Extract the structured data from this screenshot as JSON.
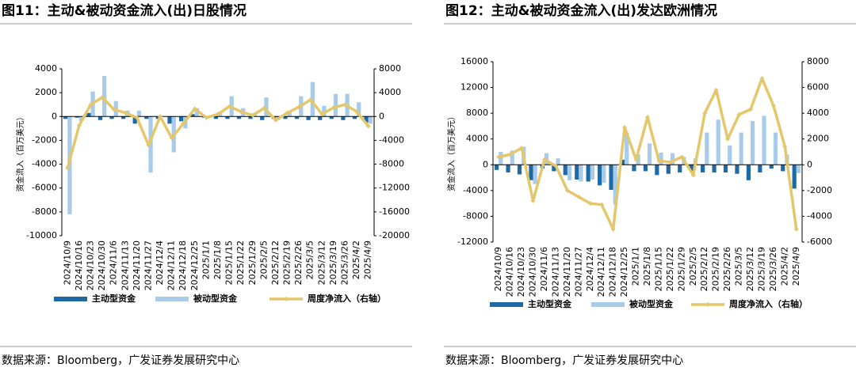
{
  "chart_data": [
    {
      "type": "bar",
      "title": "图11：主动&被动资金流入(出)日股情况",
      "ylabel": "资金流入（百万美元）",
      "source": "数据来源：Bloomberg，广发证券发展研究中心",
      "categories": [
        "2024/10/9",
        "2024/10/16",
        "2024/10/23",
        "2024/10/30",
        "2024/11/6",
        "2024/11/13",
        "2024/11/20",
        "2024/11/27",
        "2024/12/4",
        "2024/12/11",
        "2024/12/18",
        "2024/12/25",
        "2025/1/1",
        "2025/1/8",
        "2025/1/15",
        "2025/1/22",
        "2025/1/29",
        "2025/2/5",
        "2025/2/12",
        "2025/2/19",
        "2025/2/26",
        "2025/3/5",
        "2025/3/12",
        "2025/3/19",
        "2025/3/26",
        "2025/4/2",
        "2025/4/9"
      ],
      "series": [
        {
          "name": "主动型资金",
          "color": "#1f6aa5",
          "type": "bar",
          "values": [
            -200,
            -100,
            300,
            -300,
            -200,
            -200,
            -600,
            -200,
            -200,
            -600,
            -400,
            200,
            -100,
            -200,
            -200,
            -200,
            -200,
            -300,
            -200,
            -200,
            -200,
            -300,
            -300,
            -200,
            -300,
            -200,
            -500
          ]
        },
        {
          "name": "被动型资金",
          "color": "#a9cbea",
          "type": "bar",
          "values": [
            -8200,
            -400,
            2100,
            3400,
            1300,
            500,
            500,
            -4700,
            0,
            -3000,
            -1000,
            700,
            0,
            300,
            1700,
            700,
            300,
            1600,
            -300,
            400,
            1700,
            2900,
            900,
            1900,
            1900,
            1200,
            -600
          ]
        },
        {
          "name": "周度净流入（右轴）",
          "color": "#e3c76a",
          "type": "line",
          "axis": "y2",
          "values": [
            -8600,
            -1500,
            2000,
            3200,
            1200,
            600,
            -200,
            -4800,
            0,
            -3600,
            -1200,
            1300,
            -200,
            400,
            1700,
            800,
            200,
            1400,
            -600,
            600,
            1600,
            2800,
            400,
            1500,
            2000,
            800,
            -1600
          ]
        }
      ],
      "ylim": [
        -10000,
        4000
      ],
      "yticks": [
        -10000,
        -8000,
        -6000,
        -4000,
        -2000,
        0,
        2000,
        4000
      ],
      "y2lim": [
        -20000,
        8000
      ],
      "y2ticks": [
        -20000,
        -16000,
        -12000,
        -8000,
        -4000,
        0,
        4000,
        8000
      ]
    },
    {
      "type": "bar",
      "title": "图12：主动&被动资金流入(出)发达欧洲情况",
      "ylabel": "资金流入（百万美元）",
      "source": "数据来源：Bloomberg，广发证券发展研究中心",
      "categories": [
        "2024/10/9",
        "2024/10/16",
        "2024/10/23",
        "2024/10/30",
        "2024/11/6",
        "2024/11/13",
        "2024/11/20",
        "2024/11/27",
        "2024/12/4",
        "2024/12/11",
        "2024/12/18",
        "2024/12/25",
        "2025/1/1",
        "2025/1/8",
        "2025/1/15",
        "2025/1/22",
        "2025/1/29",
        "2025/2/5",
        "2025/2/12",
        "2025/2/19",
        "2025/2/26",
        "2025/3/5",
        "2025/3/12",
        "2025/3/19",
        "2025/3/26",
        "2025/4/2",
        "2025/4/9"
      ],
      "series": [
        {
          "name": "主动型资金",
          "color": "#1f6aa5",
          "type": "bar",
          "values": [
            -800,
            -1200,
            -1500,
            -2400,
            -600,
            -1000,
            -1600,
            -2300,
            -2600,
            -3200,
            -3900,
            800,
            -1000,
            -1000,
            -1600,
            -1400,
            -1200,
            -1000,
            -1200,
            -1200,
            -1200,
            -1400,
            -2400,
            -1200,
            -600,
            -1000,
            -3700
          ]
        },
        {
          "name": "被动型资金",
          "color": "#a9cbea",
          "type": "bar",
          "values": [
            2000,
            2200,
            2800,
            -3000,
            1800,
            1000,
            -2400,
            -2600,
            -2300,
            -2800,
            -6200,
            5000,
            1600,
            3300,
            1900,
            1800,
            1200,
            1000,
            5000,
            7000,
            3000,
            5000,
            6800,
            7600,
            5000,
            1600,
            -1300
          ]
        },
        {
          "name": "周度净流入（右轴）",
          "color": "#e3c76a",
          "type": "line",
          "axis": "y2",
          "values": [
            600,
            800,
            1300,
            -2800,
            400,
            -100,
            -2000,
            -2500,
            -3000,
            -3100,
            -5000,
            2900,
            400,
            3700,
            300,
            200,
            600,
            -800,
            4000,
            5800,
            2000,
            3900,
            4300,
            6700,
            4600,
            1400,
            -5000
          ]
        }
      ],
      "ylim": [
        -12000,
        16000
      ],
      "yticks": [
        -12000,
        -8000,
        -4000,
        0,
        4000,
        8000,
        12000,
        16000
      ],
      "y2lim": [
        -6000,
        8000
      ],
      "y2ticks": [
        -6000,
        -4000,
        -2000,
        0,
        2000,
        4000,
        6000,
        8000
      ]
    }
  ]
}
